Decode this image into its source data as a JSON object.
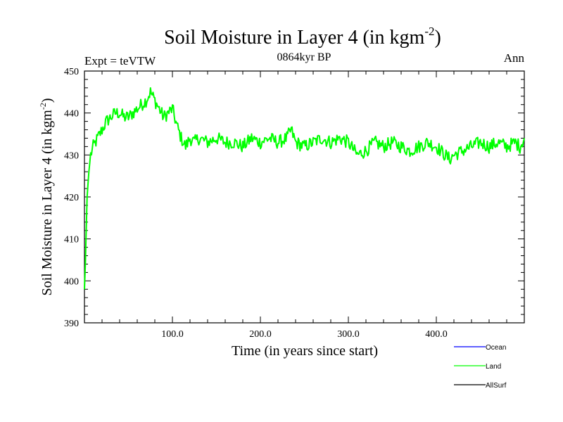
{
  "chart_data": {
    "type": "line",
    "title": "Soil Moisture in Layer 4 (in kgm",
    "title_sup": "-2",
    "title_close": ")",
    "subtitle": "0864kyr BP",
    "left_label": "Expt = teVTW",
    "right_label": "Ann",
    "xlabel": "Time (in years since start)",
    "ylabel": "Soil Moisture in Layer 4 (in kgm",
    "ylabel_sup": "-2",
    "ylabel_close": ")",
    "xlim": [
      0,
      500
    ],
    "ylim": [
      390,
      450
    ],
    "x_ticks": [
      100,
      200,
      300,
      400
    ],
    "x_tick_labels": [
      "100.0",
      "200.0",
      "300.0",
      "400.0"
    ],
    "y_ticks": [
      390,
      400,
      410,
      420,
      430,
      440,
      450
    ],
    "y_tick_labels": [
      "390",
      "400",
      "410",
      "420",
      "430",
      "440",
      "450"
    ],
    "legend": [
      {
        "name": "Ocean",
        "color": "#0000ff"
      },
      {
        "name": "Land",
        "color": "#00ff00"
      },
      {
        "name": "AllSurf",
        "color": "#000000"
      }
    ],
    "series": [
      {
        "name": "Land",
        "color": "#00ff00",
        "x": [
          0,
          1,
          2,
          3,
          5,
          7,
          10,
          15,
          20,
          25,
          30,
          35,
          40,
          45,
          50,
          55,
          60,
          65,
          70,
          75,
          80,
          85,
          90,
          95,
          100,
          105,
          110,
          115,
          120,
          125,
          130,
          140,
          150,
          160,
          170,
          180,
          190,
          200,
          210,
          220,
          230,
          235,
          240,
          250,
          260,
          270,
          280,
          290,
          300,
          310,
          320,
          330,
          340,
          350,
          360,
          370,
          380,
          390,
          400,
          410,
          415,
          420,
          430,
          440,
          450,
          460,
          470,
          480,
          490,
          495,
          500
        ],
        "y": [
          398,
          404,
          412,
          420,
          426,
          430,
          432,
          434,
          436,
          438,
          439,
          440,
          440,
          439,
          439,
          440,
          441,
          442,
          443,
          445,
          443,
          441,
          439,
          440,
          441,
          437,
          434,
          432,
          434,
          433,
          434,
          433,
          434,
          433,
          433,
          432,
          434,
          433,
          434,
          433,
          434,
          436,
          433,
          432,
          433,
          434,
          433,
          434,
          433,
          430,
          431,
          433,
          432,
          433,
          432,
          431,
          432,
          433,
          432,
          430,
          429,
          430,
          431,
          432,
          433,
          432,
          433,
          432,
          433,
          432,
          434
        ]
      }
    ]
  }
}
